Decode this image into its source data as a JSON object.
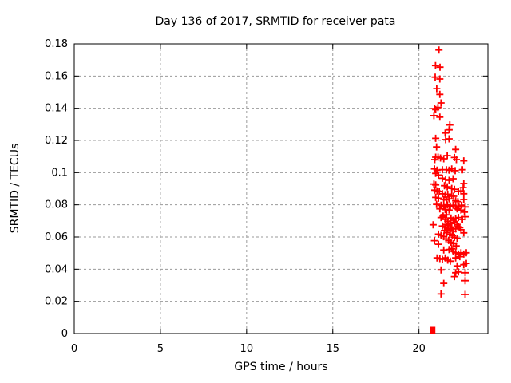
{
  "chart_data": {
    "type": "scatter",
    "title": "Day 136 of 2017, SRMTID for receiver pata",
    "xlabel": "GPS time / hours",
    "ylabel": "SRMTID / TECUs",
    "xlim": [
      0,
      24
    ],
    "ylim": [
      0,
      0.18
    ],
    "grid": "dashed gray, both axes",
    "legend": "none",
    "marker": "plus-cross",
    "marker_color": "#ff0000",
    "grid_color": "#9a9a9a",
    "axis_color": "#000000",
    "xticks": [
      {
        "value": 0,
        "label": "0"
      },
      {
        "value": 5,
        "label": "5"
      },
      {
        "value": 10,
        "label": "10"
      },
      {
        "value": 15,
        "label": "15"
      },
      {
        "value": 20,
        "label": "20"
      }
    ],
    "yticks": [
      {
        "value": 0,
        "label": "0"
      },
      {
        "value": 0.02,
        "label": "0.02"
      },
      {
        "value": 0.04,
        "label": "0.04"
      },
      {
        "value": 0.06,
        "label": "0.06"
      },
      {
        "value": 0.08,
        "label": "0.08"
      },
      {
        "value": 0.1,
        "label": "0.1"
      },
      {
        "value": 0.12,
        "label": "0.12"
      },
      {
        "value": 0.14,
        "label": "0.14"
      },
      {
        "value": 0.16,
        "label": "0.16"
      },
      {
        "value": 0.18,
        "label": "0.18"
      }
    ],
    "zero_point": {
      "x": 20.79,
      "y": 0,
      "marker": "filled-square"
    },
    "points": [
      [
        21.16,
        0.1762
      ],
      [
        20.96,
        0.1665
      ],
      [
        21.22,
        0.1655
      ],
      [
        20.94,
        0.1593
      ],
      [
        21.21,
        0.1582
      ],
      [
        21.03,
        0.1522
      ],
      [
        21.21,
        0.1486
      ],
      [
        21.28,
        0.1433
      ],
      [
        21.1,
        0.1405
      ],
      [
        20.9,
        0.1398
      ],
      [
        20.97,
        0.1392
      ],
      [
        20.87,
        0.1354
      ],
      [
        21.21,
        0.1345
      ],
      [
        21.79,
        0.1296
      ],
      [
        21.75,
        0.1266
      ],
      [
        21.52,
        0.1246
      ],
      [
        20.97,
        0.1213
      ],
      [
        21.55,
        0.1205
      ],
      [
        21.75,
        0.121
      ],
      [
        21.02,
        0.116
      ],
      [
        22.13,
        0.1144
      ],
      [
        20.97,
        0.1096
      ],
      [
        21.11,
        0.1096
      ],
      [
        21.25,
        0.1091
      ],
      [
        21.44,
        0.1086
      ],
      [
        20.92,
        0.1081
      ],
      [
        21.64,
        0.1106
      ],
      [
        22.06,
        0.1094
      ],
      [
        22.17,
        0.1081
      ],
      [
        22.6,
        0.1073
      ],
      [
        20.9,
        0.1023
      ],
      [
        21.05,
        0.1015
      ],
      [
        21.36,
        0.1018
      ],
      [
        21.59,
        0.1018
      ],
      [
        21.75,
        0.1015
      ],
      [
        21.9,
        0.1023
      ],
      [
        22.1,
        0.1012
      ],
      [
        22.52,
        0.1018
      ],
      [
        20.97,
        0.0995
      ],
      [
        21.13,
        0.0985
      ],
      [
        21.36,
        0.0965
      ],
      [
        21.55,
        0.0957
      ],
      [
        21.75,
        0.0952
      ],
      [
        21.98,
        0.0962
      ],
      [
        22.6,
        0.0932
      ],
      [
        22.57,
        0.0907
      ],
      [
        20.87,
        0.0929
      ],
      [
        20.97,
        0.0924
      ],
      [
        21.48,
        0.0919
      ],
      [
        21.64,
        0.0912
      ],
      [
        21.9,
        0.0902
      ],
      [
        22.06,
        0.0896
      ],
      [
        20.92,
        0.0891
      ],
      [
        21.05,
        0.0886
      ],
      [
        21.18,
        0.0883
      ],
      [
        22.29,
        0.0883
      ],
      [
        22.44,
        0.0886
      ],
      [
        21.36,
        0.0869
      ],
      [
        21.52,
        0.0863
      ],
      [
        21.67,
        0.0866
      ],
      [
        21.9,
        0.0858
      ],
      [
        22.01,
        0.0853
      ],
      [
        22.6,
        0.0869
      ],
      [
        20.97,
        0.0846
      ],
      [
        21.13,
        0.0841
      ],
      [
        21.44,
        0.0833
      ],
      [
        21.59,
        0.083
      ],
      [
        21.75,
        0.0837
      ],
      [
        22.13,
        0.0825
      ],
      [
        22.26,
        0.082
      ],
      [
        22.6,
        0.0833
      ],
      [
        21.02,
        0.0803
      ],
      [
        21.28,
        0.0797
      ],
      [
        21.44,
        0.0792
      ],
      [
        21.64,
        0.08
      ],
      [
        21.82,
        0.0792
      ],
      [
        21.98,
        0.0797
      ],
      [
        22.13,
        0.0787
      ],
      [
        22.32,
        0.0792
      ],
      [
        22.48,
        0.0797
      ],
      [
        22.68,
        0.0787
      ],
      [
        21.21,
        0.0775
      ],
      [
        21.52,
        0.077
      ],
      [
        21.75,
        0.0767
      ],
      [
        22.21,
        0.0775
      ],
      [
        22.44,
        0.0767
      ],
      [
        22.64,
        0.0754
      ],
      [
        20.82,
        0.0676
      ],
      [
        21.28,
        0.0721
      ],
      [
        21.52,
        0.0709
      ],
      [
        21.67,
        0.0698
      ],
      [
        21.82,
        0.0684
      ],
      [
        21.98,
        0.0704
      ],
      [
        22.13,
        0.0714
      ],
      [
        22.29,
        0.0721
      ],
      [
        22.52,
        0.0709
      ],
      [
        22.68,
        0.0726
      ],
      [
        21.36,
        0.0668
      ],
      [
        21.52,
        0.066
      ],
      [
        21.67,
        0.0651
      ],
      [
        21.82,
        0.0643
      ],
      [
        21.98,
        0.0635
      ],
      [
        22.13,
        0.065
      ],
      [
        22.29,
        0.0664
      ],
      [
        22.44,
        0.0645
      ],
      [
        22.6,
        0.0626
      ],
      [
        21.13,
        0.0618
      ],
      [
        21.28,
        0.061
      ],
      [
        21.44,
        0.0602
      ],
      [
        20.9,
        0.0577
      ],
      [
        21.13,
        0.0555
      ],
      [
        21.44,
        0.0519
      ],
      [
        21.75,
        0.0522
      ],
      [
        21.9,
        0.0527
      ],
      [
        21.98,
        0.0511
      ],
      [
        22.13,
        0.0502
      ],
      [
        22.29,
        0.0494
      ],
      [
        22.44,
        0.0502
      ],
      [
        22.6,
        0.0494
      ],
      [
        22.75,
        0.0502
      ],
      [
        21.05,
        0.047
      ],
      [
        21.21,
        0.0466
      ],
      [
        21.36,
        0.0461
      ],
      [
        21.52,
        0.047
      ],
      [
        21.67,
        0.0456
      ],
      [
        21.82,
        0.045
      ],
      [
        22.13,
        0.047
      ],
      [
        22.37,
        0.0478
      ],
      [
        22.6,
        0.0428
      ],
      [
        22.75,
        0.0436
      ],
      [
        22.21,
        0.042
      ],
      [
        21.28,
        0.0395
      ],
      [
        22.13,
        0.0378
      ],
      [
        22.29,
        0.0383
      ],
      [
        22.68,
        0.0378
      ],
      [
        22.06,
        0.0354
      ],
      [
        22.68,
        0.0329
      ],
      [
        21.44,
        0.0312
      ],
      [
        21.28,
        0.0246
      ],
      [
        22.68,
        0.0243
      ],
      [
        21.4,
        0.073
      ],
      [
        21.6,
        0.0738
      ],
      [
        21.86,
        0.0718
      ],
      [
        22.06,
        0.069
      ],
      [
        21.57,
        0.0678
      ],
      [
        21.72,
        0.0672
      ],
      [
        21.9,
        0.0662
      ],
      [
        22.21,
        0.0678
      ],
      [
        22.37,
        0.0658
      ],
      [
        21.48,
        0.064
      ],
      [
        21.62,
        0.0628
      ],
      [
        21.79,
        0.0618
      ],
      [
        21.94,
        0.0608
      ],
      [
        22.06,
        0.0598
      ],
      [
        22.21,
        0.0592
      ],
      [
        21.57,
        0.0588
      ],
      [
        21.72,
        0.0578
      ],
      [
        21.86,
        0.0568
      ],
      [
        22.01,
        0.0558
      ],
      [
        22.16,
        0.0545
      ]
    ]
  }
}
